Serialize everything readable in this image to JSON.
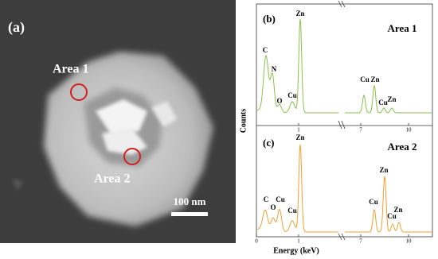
{
  "panel_a": {
    "label": "(a)",
    "areas": [
      "Area 1",
      "Area 2"
    ],
    "scale_bar": "100 nm"
  },
  "panel_b": {
    "label": "(b)",
    "title": "Area 1",
    "peaks": [
      "C",
      "N",
      "O",
      "Cu",
      "Zn",
      "Cu",
      "Zn",
      "Cu",
      "Zn"
    ],
    "xticks": [
      "1",
      "7",
      "10"
    ]
  },
  "panel_c": {
    "label": "(c)",
    "title": "Area 2",
    "peaks": [
      "C",
      "O",
      "Cu",
      "Cu",
      "Zn",
      "Cu",
      "Zn",
      "Cu",
      "Zn"
    ],
    "xticks": [
      "0",
      "1",
      "7",
      "10"
    ]
  },
  "y_label": "Counts",
  "x_label": "Energy (keV)"
}
